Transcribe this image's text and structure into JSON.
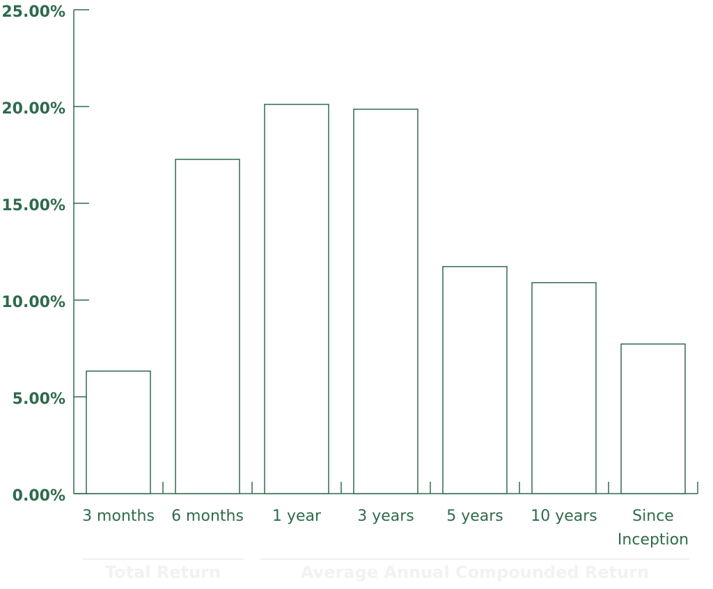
{
  "chart_data": {
    "type": "bar",
    "categories": [
      "3 months",
      "6 months",
      "1 year",
      "3 years",
      "5 years",
      "10 years",
      "Since Inception"
    ],
    "values": [
      6.33,
      17.27,
      20.11,
      19.86,
      11.73,
      10.9,
      7.73
    ],
    "color": "#2e6a4c",
    "ylim": [
      0,
      25
    ],
    "yticks": [
      {
        "value": 0,
        "label": "0.00%"
      },
      {
        "value": 5,
        "label": "5.00%"
      },
      {
        "value": 10,
        "label": "10.00%"
      },
      {
        "value": 15,
        "label": "15.00%"
      },
      {
        "value": 20,
        "label": "20.00%"
      },
      {
        "value": 25,
        "label": "25.00%"
      }
    ],
    "groups": [
      {
        "label": "Total Return",
        "span": [
          0,
          2
        ]
      },
      {
        "label": "Average Annual Compounded Return",
        "span": [
          2,
          7
        ]
      }
    ]
  }
}
